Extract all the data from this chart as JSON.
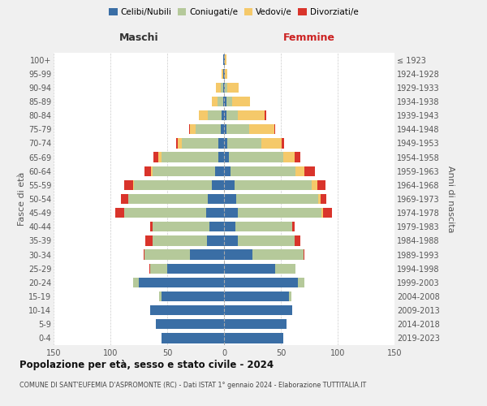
{
  "age_groups": [
    "0-4",
    "5-9",
    "10-14",
    "15-19",
    "20-24",
    "25-29",
    "30-34",
    "35-39",
    "40-44",
    "45-49",
    "50-54",
    "55-59",
    "60-64",
    "65-69",
    "70-74",
    "75-79",
    "80-84",
    "85-89",
    "90-94",
    "95-99",
    "100+"
  ],
  "birth_years": [
    "2019-2023",
    "2014-2018",
    "2009-2013",
    "2004-2008",
    "1999-2003",
    "1994-1998",
    "1989-1993",
    "1984-1988",
    "1979-1983",
    "1974-1978",
    "1969-1973",
    "1964-1968",
    "1959-1963",
    "1954-1958",
    "1949-1953",
    "1944-1948",
    "1939-1943",
    "1934-1938",
    "1929-1933",
    "1924-1928",
    "≤ 1923"
  ],
  "colors": {
    "celibi": "#3a6ea5",
    "coniugati": "#b5c99a",
    "vedovi": "#f5c96a",
    "divorziati": "#d9342b"
  },
  "legend_labels": [
    "Celibi/Nubili",
    "Coniugati/e",
    "Vedovi/e",
    "Divorziati/e"
  ],
  "maschi": {
    "celibi": [
      55,
      60,
      65,
      55,
      75,
      50,
      30,
      15,
      13,
      16,
      14,
      11,
      8,
      5,
      5,
      3,
      2,
      1,
      1,
      1,
      1
    ],
    "coniugati": [
      0,
      0,
      0,
      2,
      5,
      15,
      40,
      48,
      50,
      72,
      70,
      68,
      55,
      50,
      32,
      22,
      12,
      5,
      2,
      0,
      0
    ],
    "vedovi": [
      0,
      0,
      0,
      0,
      0,
      0,
      0,
      0,
      0,
      0,
      0,
      1,
      1,
      3,
      4,
      5,
      8,
      5,
      4,
      1,
      0
    ],
    "divorziati": [
      0,
      0,
      0,
      0,
      0,
      1,
      1,
      6,
      2,
      8,
      7,
      8,
      6,
      4,
      1,
      1,
      0,
      0,
      0,
      0,
      0
    ]
  },
  "femmine": {
    "nubili": [
      52,
      55,
      60,
      57,
      65,
      45,
      25,
      12,
      10,
      12,
      11,
      9,
      6,
      4,
      3,
      2,
      2,
      2,
      1,
      1,
      1
    ],
    "coniugati": [
      0,
      0,
      0,
      2,
      6,
      18,
      45,
      50,
      50,
      74,
      72,
      68,
      57,
      48,
      30,
      20,
      10,
      5,
      2,
      0,
      0
    ],
    "vedovi": [
      0,
      0,
      0,
      0,
      0,
      0,
      0,
      0,
      0,
      1,
      2,
      5,
      8,
      10,
      18,
      22,
      24,
      16,
      10,
      2,
      1
    ],
    "divorziati": [
      0,
      0,
      0,
      0,
      0,
      0,
      1,
      5,
      2,
      8,
      5,
      7,
      9,
      5,
      2,
      1,
      1,
      0,
      0,
      0,
      0
    ]
  },
  "xlim": 150,
  "xticks": [
    -150,
    -100,
    -50,
    0,
    50,
    100,
    150
  ],
  "title": "Popolazione per età, sesso e stato civile - 2024",
  "subtitle": "COMUNE DI SANT'EUFEMIA D'ASPROMONTE (RC) - Dati ISTAT 1° gennaio 2024 - Elaborazione TUTTITALIA.IT",
  "ylabel_left": "Fasce di età",
  "ylabel_right": "Anni di nascita",
  "maschi_label": "Maschi",
  "femmine_label": "Femmine",
  "bg_color": "#f0f0f0",
  "plot_bg_color": "#ffffff"
}
